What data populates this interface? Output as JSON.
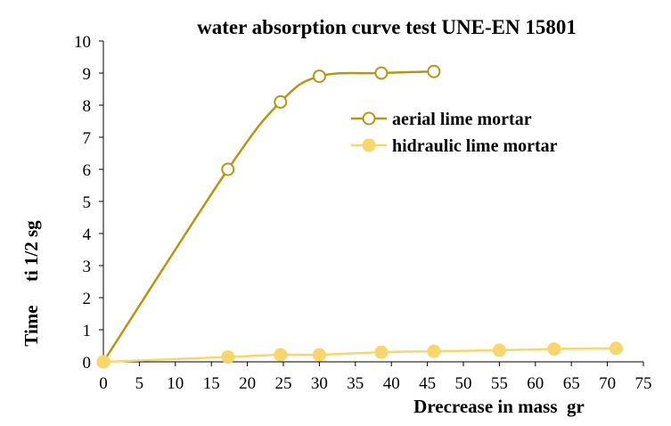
{
  "chart_data": {
    "type": "line",
    "title": "water absorption curve test UNE-EN 15801",
    "xlabel": "Drecrease in mass  gr",
    "ylabel": "Time     ti 1/2 sg",
    "xlim": [
      0,
      75
    ],
    "ylim": [
      0,
      10
    ],
    "x_ticks": [
      0,
      5,
      10,
      15,
      20,
      25,
      30,
      35,
      40,
      45,
      50,
      55,
      60,
      65,
      70,
      75
    ],
    "y_ticks": [
      0,
      1,
      2,
      3,
      4,
      5,
      6,
      7,
      8,
      9,
      10
    ],
    "grid": false,
    "legend_position": "upper-right-inside",
    "series": [
      {
        "name": "aerial lime mortar",
        "color": "#B8960C",
        "marker": "open-circle",
        "x": [
          0,
          17.3,
          24.6,
          30.0,
          38.6,
          45.9
        ],
        "y": [
          0,
          6.0,
          8.1,
          8.9,
          9.0,
          9.05
        ]
      },
      {
        "name": "hidraulic lime mortar",
        "color": "#F8D66A",
        "marker": "filled-circle",
        "x": [
          0,
          17.3,
          24.6,
          30.0,
          38.6,
          45.9,
          55.0,
          62.6,
          71.2
        ],
        "y": [
          0,
          0.15,
          0.22,
          0.22,
          0.3,
          0.33,
          0.36,
          0.4,
          0.42
        ]
      }
    ]
  }
}
